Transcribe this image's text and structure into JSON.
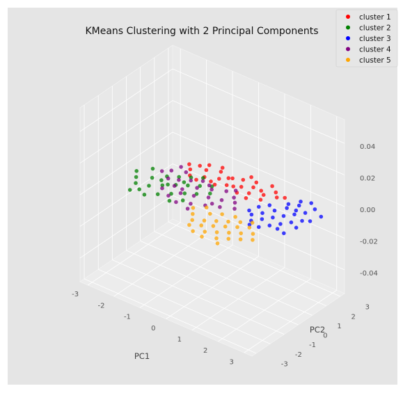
{
  "chart_data": {
    "type": "scatter",
    "title": "KMeans Clustering with 2 Principal Components",
    "xlabel": "PC1",
    "ylabel": "PC2",
    "zlabel": "",
    "x_ticks": [
      "-3",
      "-2",
      "-1",
      "0",
      "1",
      "2",
      "3"
    ],
    "y_ticks": [
      "-3",
      "-2",
      "-1",
      "0",
      "1",
      "2",
      "3"
    ],
    "z_ticks": [
      "-0.04",
      "-0.02",
      "0.00",
      "0.02",
      "0.04"
    ],
    "xlim": [
      -3.3,
      3.3
    ],
    "ylim": [
      -3.3,
      3.3
    ],
    "zlim": [
      -0.055,
      0.055
    ],
    "grid": true,
    "legend_position": "top-right",
    "series": [
      {
        "name": "cluster 1",
        "color": "#ff0000",
        "points": [
          [
            -1.6,
            1.4
          ],
          [
            -1.2,
            1.8
          ],
          [
            -0.8,
            2.1
          ],
          [
            -0.4,
            1.9
          ],
          [
            0.0,
            2.2
          ],
          [
            0.4,
            2.4
          ],
          [
            0.8,
            2.0
          ],
          [
            1.2,
            2.3
          ],
          [
            -1.4,
            1.0
          ],
          [
            -1.0,
            1.3
          ],
          [
            -0.6,
            1.6
          ],
          [
            -0.2,
            1.4
          ],
          [
            0.2,
            1.7
          ],
          [
            0.6,
            1.5
          ],
          [
            1.0,
            1.8
          ],
          [
            1.4,
            2.0
          ],
          [
            -1.8,
            1.7
          ],
          [
            -0.9,
            2.4
          ],
          [
            0.1,
            2.6
          ],
          [
            0.9,
            2.6
          ],
          [
            -1.1,
            0.9
          ],
          [
            -0.5,
            1.1
          ],
          [
            0.3,
            1.2
          ],
          [
            0.7,
            1.1
          ],
          [
            -1.3,
            2.2
          ],
          [
            -0.3,
            2.0
          ],
          [
            0.5,
            2.0
          ],
          [
            1.6,
            2.2
          ],
          [
            -0.7,
            1.2
          ],
          [
            0.0,
            1.5
          ],
          [
            1.1,
            1.4
          ],
          [
            -1.5,
            1.9
          ]
        ]
      },
      {
        "name": "cluster 2",
        "color": "#008000",
        "points": [
          [
            -2.6,
            -0.6
          ],
          [
            -2.2,
            -0.2
          ],
          [
            -1.9,
            0.3
          ],
          [
            -1.6,
            0.6
          ],
          [
            -1.3,
            0.9
          ],
          [
            -1.0,
            1.2
          ],
          [
            -2.4,
            -1.0
          ],
          [
            -2.0,
            -0.8
          ],
          [
            -1.7,
            -0.4
          ],
          [
            -1.4,
            0.0
          ],
          [
            -1.1,
            0.3
          ],
          [
            -0.8,
            0.6
          ],
          [
            -0.5,
            0.9
          ],
          [
            -2.1,
            -1.3
          ],
          [
            -1.8,
            -1.5
          ],
          [
            -1.5,
            -1.1
          ],
          [
            -1.2,
            -0.7
          ],
          [
            -0.9,
            -0.3
          ],
          [
            -0.6,
            0.0
          ],
          [
            -2.8,
            -0.2
          ],
          [
            -2.5,
            0.4
          ],
          [
            -0.3,
            0.4
          ],
          [
            -1.0,
            -1.2
          ],
          [
            -1.9,
            -0.1
          ],
          [
            -1.3,
            0.4
          ],
          [
            -2.3,
            -1.6
          ],
          [
            -0.7,
            -0.8
          ],
          [
            -1.6,
            -0.2
          ]
        ]
      },
      {
        "name": "cluster 3",
        "color": "#0000ff",
        "points": [
          [
            2.4,
            2.6
          ],
          [
            2.2,
            2.1
          ],
          [
            2.0,
            1.6
          ],
          [
            1.8,
            1.1
          ],
          [
            1.6,
            0.6
          ],
          [
            1.4,
            0.2
          ],
          [
            2.6,
            1.8
          ],
          [
            2.4,
            1.4
          ],
          [
            2.2,
            1.0
          ],
          [
            2.0,
            0.6
          ],
          [
            1.8,
            0.2
          ],
          [
            1.6,
            -0.2
          ],
          [
            2.8,
            1.2
          ],
          [
            2.6,
            0.8
          ],
          [
            2.4,
            0.4
          ],
          [
            2.2,
            0.0
          ],
          [
            2.0,
            -0.4
          ],
          [
            3.0,
            1.4
          ],
          [
            1.2,
            0.4
          ],
          [
            1.5,
            1.3
          ],
          [
            2.9,
            0.6
          ],
          [
            2.7,
            2.3
          ],
          [
            1.9,
            1.9
          ],
          [
            2.5,
            0.0
          ],
          [
            3.1,
            2.0
          ],
          [
            1.7,
            -0.5
          ],
          [
            2.3,
            1.7
          ],
          [
            1.3,
            0.9
          ],
          [
            2.1,
            2.4
          ],
          [
            2.8,
            -0.1
          ]
        ]
      },
      {
        "name": "cluster 4",
        "color": "#800080",
        "points": [
          [
            -2.0,
            0.8
          ],
          [
            -1.6,
            1.1
          ],
          [
            -1.2,
            0.7
          ],
          [
            -0.8,
            0.4
          ],
          [
            -0.4,
            0.7
          ],
          [
            0.0,
            1.0
          ],
          [
            0.4,
            0.8
          ],
          [
            -1.8,
            0.2
          ],
          [
            -1.4,
            -0.1
          ],
          [
            -1.0,
            -0.4
          ],
          [
            -0.6,
            -0.2
          ],
          [
            -0.2,
            0.1
          ],
          [
            0.2,
            0.3
          ],
          [
            0.6,
            0.5
          ],
          [
            -1.6,
            -0.6
          ],
          [
            -1.2,
            -0.9
          ],
          [
            -0.8,
            -1.1
          ],
          [
            -0.4,
            -0.8
          ],
          [
            0.0,
            -0.5
          ],
          [
            0.4,
            -0.2
          ],
          [
            -2.2,
            0.5
          ],
          [
            -1.9,
            1.3
          ],
          [
            -0.9,
            1.0
          ],
          [
            0.2,
            1.3
          ],
          [
            -1.1,
            -0.1
          ],
          [
            -0.3,
            -1.2
          ],
          [
            0.8,
            0.1
          ],
          [
            -1.5,
            0.4
          ],
          [
            -0.6,
            0.9
          ],
          [
            0.1,
            -0.2
          ]
        ]
      },
      {
        "name": "cluster 5",
        "color": "#ffa500",
        "points": [
          [
            0.2,
            -1.8
          ],
          [
            0.5,
            -1.5
          ],
          [
            0.8,
            -1.2
          ],
          [
            1.1,
            -0.9
          ],
          [
            1.4,
            -0.6
          ],
          [
            1.7,
            -0.3
          ],
          [
            0.3,
            -2.2
          ],
          [
            0.6,
            -1.9
          ],
          [
            0.9,
            -1.6
          ],
          [
            1.2,
            -1.3
          ],
          [
            1.5,
            -1.0
          ],
          [
            1.8,
            -0.7
          ],
          [
            0.6,
            -2.5
          ],
          [
            0.9,
            -2.2
          ],
          [
            1.2,
            -1.9
          ],
          [
            1.5,
            -1.6
          ],
          [
            1.8,
            -1.3
          ],
          [
            2.1,
            -1.0
          ],
          [
            1.0,
            -2.6
          ],
          [
            1.4,
            -2.3
          ],
          [
            1.7,
            -2.0
          ],
          [
            2.0,
            -1.7
          ],
          [
            0.0,
            -1.4
          ],
          [
            -0.2,
            -1.0
          ],
          [
            0.4,
            -0.9
          ],
          [
            0.7,
            -0.6
          ],
          [
            2.3,
            -1.4
          ],
          [
            1.1,
            -0.4
          ],
          [
            0.1,
            -0.6
          ],
          [
            1.6,
            -2.6
          ]
        ]
      }
    ]
  }
}
